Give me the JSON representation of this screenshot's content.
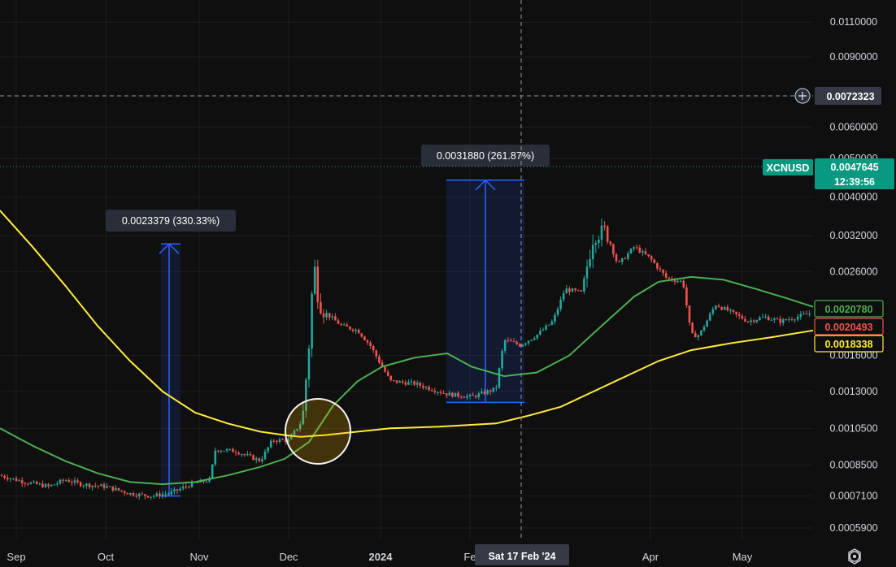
{
  "chart_data": {
    "type": "candlestick",
    "symbol": "XCNUSD",
    "current_price": "0.0047645",
    "countdown": "12:39:56",
    "crosshair_price": "0.0072323",
    "crosshair_date": "Sat 17 Feb '24",
    "y_scale": "log",
    "ylim": [
      0.00055,
      0.0125
    ],
    "y_ticks": [
      "0.0110000",
      "0.0090000",
      "0.0060000",
      "0.0050000",
      "0.0040000",
      "0.0032000",
      "0.0026000",
      "0.0016000",
      "0.0013000",
      "0.0010500",
      "0.0008500",
      "0.0007100",
      "0.0005900"
    ],
    "x_ticks": [
      "Sep",
      "Oct",
      "Nov",
      "Dec",
      "2024",
      "Fe",
      "Apr",
      "May"
    ],
    "indicator_values": {
      "green_ma": "0.0020780",
      "red_value": "0.0020493",
      "yellow_ma": "0.0018338"
    },
    "measurements": [
      {
        "label": "0.0023379 (330.33%)",
        "from_price": 0.00071,
        "to_price": 0.00305
      },
      {
        "label": "0.0031880 (261.87%)",
        "from_price": 0.00122,
        "to_price": 0.00441
      }
    ],
    "price_path": [
      [
        0,
        0.0008
      ],
      [
        30,
        0.00077
      ],
      [
        60,
        0.00075
      ],
      [
        80,
        0.00078
      ],
      [
        100,
        0.00076
      ],
      [
        130,
        0.00075
      ],
      [
        160,
        0.00072
      ],
      [
        185,
        0.00071
      ],
      [
        208,
        0.00072
      ],
      [
        235,
        0.00076
      ],
      [
        258,
        0.00078
      ],
      [
        265,
        0.00093
      ],
      [
        290,
        0.00092
      ],
      [
        320,
        0.00087
      ],
      [
        335,
        0.00098
      ],
      [
        355,
        0.00098
      ],
      [
        372,
        0.0011
      ],
      [
        380,
        0.0017
      ],
      [
        386,
        0.00275
      ],
      [
        392,
        0.0022
      ],
      [
        400,
        0.00205
      ],
      [
        420,
        0.0019
      ],
      [
        440,
        0.00185
      ],
      [
        455,
        0.0017
      ],
      [
        470,
        0.0015
      ],
      [
        480,
        0.00138
      ],
      [
        510,
        0.00136
      ],
      [
        530,
        0.00132
      ],
      [
        550,
        0.00128
      ],
      [
        580,
        0.00126
      ],
      [
        610,
        0.00132
      ],
      [
        620,
        0.00175
      ],
      [
        640,
        0.0017
      ],
      [
        660,
        0.0018
      ],
      [
        680,
        0.00195
      ],
      [
        695,
        0.00235
      ],
      [
        715,
        0.0023
      ],
      [
        730,
        0.0032
      ],
      [
        745,
        0.0033
      ],
      [
        760,
        0.0027
      ],
      [
        780,
        0.003
      ],
      [
        800,
        0.0028
      ],
      [
        820,
        0.0025
      ],
      [
        840,
        0.00245
      ],
      [
        850,
        0.0018
      ],
      [
        860,
        0.0018
      ],
      [
        880,
        0.00215
      ],
      [
        900,
        0.00205
      ],
      [
        920,
        0.00195
      ],
      [
        940,
        0.002
      ],
      [
        960,
        0.00195
      ],
      [
        980,
        0.002
      ],
      [
        1000,
        0.00205
      ]
    ],
    "yellow_path": [
      [
        0,
        0.0037
      ],
      [
        40,
        0.003
      ],
      [
        80,
        0.0024
      ],
      [
        120,
        0.0019
      ],
      [
        160,
        0.00155
      ],
      [
        200,
        0.0013
      ],
      [
        240,
        0.00115
      ],
      [
        280,
        0.00108
      ],
      [
        320,
        0.00103
      ],
      [
        350,
        0.00101
      ],
      [
        370,
        0.001
      ],
      [
        400,
        0.00101
      ],
      [
        440,
        0.00103
      ],
      [
        480,
        0.00105
      ],
      [
        540,
        0.00106
      ],
      [
        610,
        0.00108
      ],
      [
        650,
        0.00113
      ],
      [
        690,
        0.00119
      ],
      [
        730,
        0.0013
      ],
      [
        770,
        0.00142
      ],
      [
        810,
        0.00155
      ],
      [
        850,
        0.00165
      ],
      [
        900,
        0.00172
      ],
      [
        950,
        0.00178
      ],
      [
        1000,
        0.00185
      ]
    ],
    "green_path": [
      [
        0,
        0.00105
      ],
      [
        40,
        0.00095
      ],
      [
        80,
        0.00087
      ],
      [
        120,
        0.00081
      ],
      [
        160,
        0.00077
      ],
      [
        200,
        0.00076
      ],
      [
        240,
        0.00077
      ],
      [
        280,
        0.0008
      ],
      [
        320,
        0.00084
      ],
      [
        350,
        0.00088
      ],
      [
        380,
        0.00097
      ],
      [
        410,
        0.0012
      ],
      [
        440,
        0.00138
      ],
      [
        470,
        0.0015
      ],
      [
        510,
        0.00158
      ],
      [
        550,
        0.00162
      ],
      [
        580,
        0.0015
      ],
      [
        620,
        0.00142
      ],
      [
        660,
        0.00145
      ],
      [
        700,
        0.0016
      ],
      [
        740,
        0.0019
      ],
      [
        780,
        0.00225
      ],
      [
        810,
        0.00245
      ],
      [
        850,
        0.00252
      ],
      [
        890,
        0.00248
      ],
      [
        930,
        0.00235
      ],
      [
        970,
        0.00222
      ],
      [
        1000,
        0.00212
      ]
    ]
  }
}
